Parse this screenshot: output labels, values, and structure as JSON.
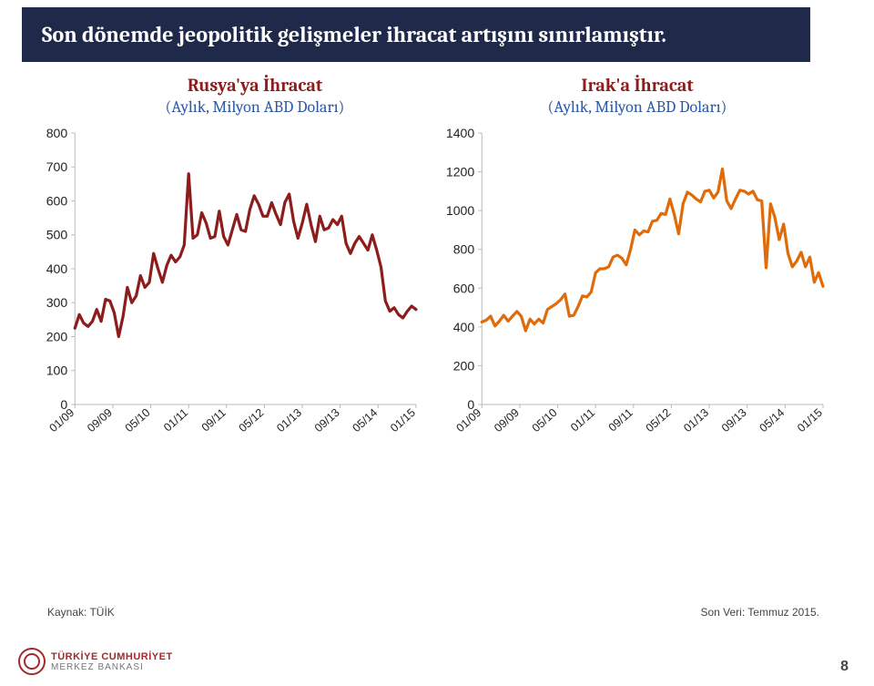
{
  "title": "Son dönemde jeopolitik gelişmeler ihracat artışını sınırlamıştır.",
  "title_bg": "#1f2a4a",
  "title_color": "#ffffff",
  "left": {
    "title": "Rusya'ya İhracat",
    "subtitle": "(Aylık, Milyon ABD Doları)",
    "title_color": "#8d1d1d",
    "subtitle_color": "#2e5aa6"
  },
  "right": {
    "title": "Irak'a İhracat",
    "subtitle": "(Aylık, Milyon ABD Doları)",
    "title_color": "#8d1d1d",
    "subtitle_color": "#2e5aa6"
  },
  "chart_left": {
    "type": "line",
    "ylim": [
      0,
      800
    ],
    "ytick_step": 100,
    "line_color": "#8d1d1d",
    "line_width": 3.2,
    "background_color": "#ffffff",
    "xlabels": [
      "01/09",
      "09/09",
      "05/10",
      "01/11",
      "09/11",
      "05/12",
      "01/13",
      "09/13",
      "05/14",
      "01/15"
    ],
    "values": [
      225,
      265,
      240,
      230,
      245,
      280,
      245,
      310,
      305,
      270,
      200,
      260,
      345,
      300,
      320,
      380,
      345,
      360,
      445,
      400,
      360,
      410,
      440,
      420,
      435,
      470,
      680,
      490,
      500,
      565,
      535,
      490,
      495,
      570,
      495,
      470,
      515,
      560,
      515,
      510,
      575,
      615,
      590,
      555,
      555,
      595,
      560,
      530,
      595,
      620,
      540,
      490,
      535,
      590,
      530,
      480,
      555,
      515,
      520,
      545,
      530,
      555,
      475,
      445,
      475,
      495,
      475,
      455,
      500,
      455,
      405,
      305,
      275,
      285,
      265,
      255,
      275,
      290,
      280
    ]
  },
  "chart_right": {
    "type": "line",
    "ylim": [
      0,
      1400
    ],
    "ytick_step": 200,
    "line_color": "#e06b0a",
    "line_width": 3.2,
    "background_color": "#ffffff",
    "xlabels": [
      "01/09",
      "09/09",
      "05/10",
      "01/11",
      "09/11",
      "05/12",
      "01/13",
      "09/13",
      "05/14",
      "01/15"
    ],
    "values": [
      425,
      435,
      455,
      405,
      430,
      460,
      430,
      455,
      480,
      455,
      380,
      440,
      415,
      440,
      420,
      490,
      505,
      520,
      540,
      570,
      455,
      460,
      505,
      560,
      555,
      580,
      680,
      700,
      700,
      710,
      760,
      770,
      755,
      720,
      800,
      900,
      875,
      895,
      890,
      945,
      950,
      985,
      980,
      1060,
      980,
      880,
      1035,
      1095,
      1080,
      1060,
      1045,
      1100,
      1105,
      1065,
      1095,
      1215,
      1050,
      1010,
      1060,
      1105,
      1100,
      1085,
      1100,
      1055,
      1050,
      705,
      1035,
      965,
      850,
      930,
      780,
      710,
      740,
      785,
      710,
      760,
      630,
      680,
      610
    ]
  },
  "footer_source_label": "Kaynak: TÜİK",
  "footer_data_label": "Son Veri: Temmuz 2015.",
  "page_number": "8",
  "logo": {
    "l1": "TÜRKİYE CUMHURİYET",
    "l2": "MERKEZ BANKASI"
  }
}
